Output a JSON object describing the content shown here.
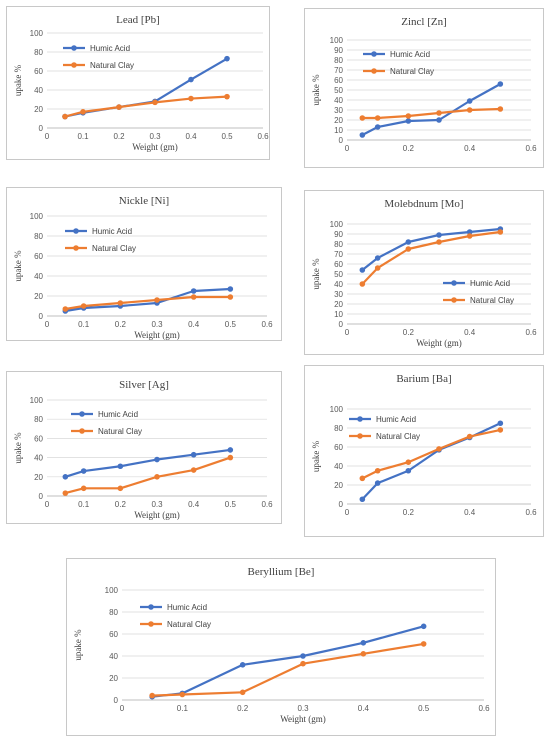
{
  "colors": {
    "humic": "#4472C4",
    "clay": "#ED7D31",
    "grid": "#d9d9d9",
    "axis": "#bfbfbf"
  },
  "chart_data": [
    {
      "type": "line",
      "title": "Lead  [Pb]",
      "xlabel": "Weight (gm)",
      "ylabel": "upake %",
      "xlim": [
        0,
        0.6
      ],
      "ylim": [
        0,
        100
      ],
      "xticks": [
        "0",
        "0.1",
        "0.2",
        "0.3",
        "0.4",
        "0.5",
        "0.6"
      ],
      "yticks": [
        "0",
        "20",
        "40",
        "60",
        "80",
        "100"
      ],
      "legend": "top-left",
      "grid": "horizontal",
      "series": [
        {
          "name": "Humic Acid",
          "x": [
            0.05,
            0.1,
            0.2,
            0.3,
            0.4,
            0.5
          ],
          "y": [
            12,
            16,
            22,
            28,
            51,
            73
          ]
        },
        {
          "name": "Natural Clay",
          "x": [
            0.05,
            0.1,
            0.2,
            0.3,
            0.4,
            0.5
          ],
          "y": [
            12,
            17,
            22,
            27,
            31,
            33
          ]
        }
      ]
    },
    {
      "type": "line",
      "title": "Zincl  [Zn]",
      "xlabel": "",
      "ylabel": "upake %",
      "xlim": [
        0,
        0.6
      ],
      "ylim": [
        0,
        100
      ],
      "xticks": [
        "0",
        "0.2",
        "0.4",
        "0.6"
      ],
      "yticks": [
        "0",
        "10",
        "20",
        "30",
        "40",
        "50",
        "60",
        "70",
        "80",
        "90",
        "100"
      ],
      "legend": "top-left",
      "grid": "horizontal",
      "series": [
        {
          "name": "Humic Acid",
          "x": [
            0.05,
            0.1,
            0.2,
            0.3,
            0.4,
            0.5
          ],
          "y": [
            5,
            13,
            19,
            20,
            39,
            56
          ]
        },
        {
          "name": "Natural Clay",
          "x": [
            0.05,
            0.1,
            0.2,
            0.3,
            0.4,
            0.5
          ],
          "y": [
            22,
            22,
            24,
            27,
            30,
            31
          ]
        }
      ]
    },
    {
      "type": "line",
      "title": "Nickle  [Ni]",
      "xlabel": "Weight (gm)",
      "ylabel": "upake %",
      "xlim": [
        0,
        0.6
      ],
      "ylim": [
        0,
        100
      ],
      "xticks": [
        "0",
        "0.1",
        "0.2",
        "0.3",
        "0.4",
        "0.5",
        "0.6"
      ],
      "yticks": [
        "0",
        "20",
        "40",
        "60",
        "80",
        "100"
      ],
      "legend": "top-left",
      "grid": "horizontal",
      "series": [
        {
          "name": "Humic Acid",
          "x": [
            0.05,
            0.1,
            0.2,
            0.3,
            0.4,
            0.5
          ],
          "y": [
            5,
            8,
            10,
            13,
            25,
            27
          ]
        },
        {
          "name": "Natural Clay",
          "x": [
            0.05,
            0.1,
            0.2,
            0.3,
            0.4,
            0.5
          ],
          "y": [
            7,
            10,
            13,
            16,
            19,
            19
          ]
        }
      ]
    },
    {
      "type": "line",
      "title": "Molebdnum  [Mo]",
      "xlabel": "Weight (gm)",
      "ylabel": "upake %",
      "xlim": [
        0,
        0.6
      ],
      "ylim": [
        0,
        100
      ],
      "xticks": [
        "0",
        "0.2",
        "0.4",
        "0.6"
      ],
      "yticks": [
        "0",
        "10",
        "20",
        "30",
        "40",
        "50",
        "60",
        "70",
        "80",
        "90",
        "100"
      ],
      "legend": "bottom-right",
      "grid": "horizontal",
      "series": [
        {
          "name": "Humic Acid",
          "x": [
            0.05,
            0.1,
            0.2,
            0.3,
            0.4,
            0.5
          ],
          "y": [
            54,
            66,
            82,
            89,
            92,
            95
          ]
        },
        {
          "name": "Natural Clay",
          "x": [
            0.05,
            0.1,
            0.2,
            0.3,
            0.4,
            0.5
          ],
          "y": [
            40,
            56,
            75,
            82,
            88,
            92
          ]
        }
      ]
    },
    {
      "type": "line",
      "title": "Silver  [Ag]",
      "xlabel": "Weight (gm)",
      "ylabel": "upake %",
      "xlim": [
        0,
        0.6
      ],
      "ylim": [
        0,
        100
      ],
      "xticks": [
        "0",
        "0.1",
        "0.2",
        "0.3",
        "0.4",
        "0.5",
        "0.6"
      ],
      "yticks": [
        "0",
        "20",
        "40",
        "60",
        "80",
        "100"
      ],
      "legend": "top-left",
      "grid": "horizontal",
      "series": [
        {
          "name": "Humic Acid",
          "x": [
            0.05,
            0.1,
            0.2,
            0.3,
            0.4,
            0.5
          ],
          "y": [
            20,
            26,
            31,
            38,
            43,
            48
          ]
        },
        {
          "name": "Natural Clay",
          "x": [
            0.05,
            0.1,
            0.2,
            0.3,
            0.4,
            0.5
          ],
          "y": [
            3,
            8,
            8,
            20,
            27,
            40
          ]
        }
      ]
    },
    {
      "type": "line",
      "title": "Barium  [Ba]",
      "xlabel": "",
      "ylabel": "upake %",
      "xlim": [
        0,
        0.6
      ],
      "ylim": [
        0,
        100
      ],
      "xticks": [
        "0",
        "0.2",
        "0.4",
        "0.6"
      ],
      "yticks": [
        "0",
        "20",
        "40",
        "60",
        "80",
        "100"
      ],
      "legend": "top-left",
      "grid": "horizontal",
      "series": [
        {
          "name": "Humic Acid",
          "x": [
            0.05,
            0.1,
            0.2,
            0.3,
            0.4,
            0.5
          ],
          "y": [
            5,
            22,
            35,
            57,
            70,
            85
          ]
        },
        {
          "name": "Natural Clay",
          "x": [
            0.05,
            0.1,
            0.2,
            0.3,
            0.4,
            0.5
          ],
          "y": [
            27,
            35,
            44,
            58,
            71,
            78
          ]
        }
      ]
    },
    {
      "type": "line",
      "title": "Beryllium  [Be]",
      "xlabel": "Weight (gm)",
      "ylabel": "upake %",
      "xlim": [
        0,
        0.6
      ],
      "ylim": [
        0,
        100
      ],
      "xticks": [
        "0",
        "0.1",
        "0.2",
        "0.3",
        "0.4",
        "0.5",
        "0.6"
      ],
      "yticks": [
        "0",
        "20",
        "40",
        "60",
        "80",
        "100"
      ],
      "legend": "top-left",
      "grid": "horizontal",
      "series": [
        {
          "name": "Humic Acid",
          "x": [
            0.05,
            0.1,
            0.2,
            0.3,
            0.4,
            0.5
          ],
          "y": [
            3,
            6,
            32,
            40,
            52,
            67
          ]
        },
        {
          "name": "Natural Clay",
          "x": [
            0.05,
            0.1,
            0.2,
            0.3,
            0.4,
            0.5
          ],
          "y": [
            4,
            5,
            7,
            33,
            42,
            51
          ]
        }
      ]
    }
  ]
}
